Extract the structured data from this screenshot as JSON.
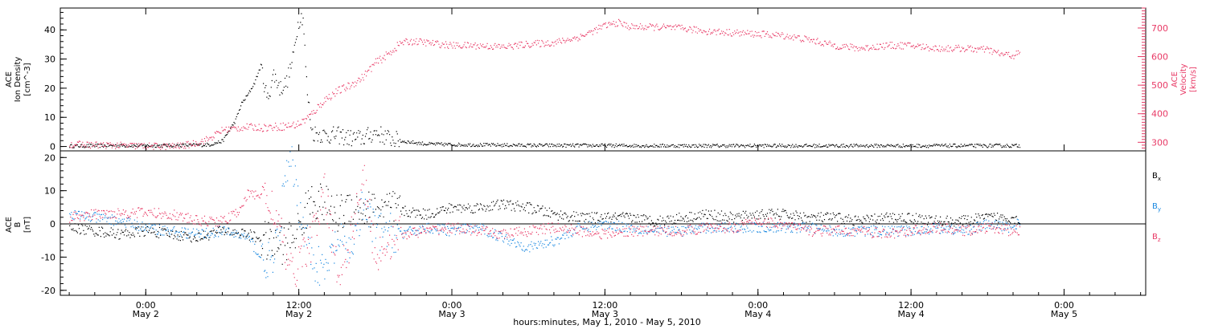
{
  "xlabel": "hours:minutes, May  1, 2010 - May  5, 2010",
  "x_ticks": [
    {
      "time": "0:00",
      "date": "May 2",
      "hour": 24
    },
    {
      "time": "12:00",
      "date": "May 2",
      "hour": 36
    },
    {
      "time": "0:00",
      "date": "May 3",
      "hour": 48
    },
    {
      "time": "12:00",
      "date": "May 3",
      "hour": 60
    },
    {
      "time": "0:00",
      "date": "May 4",
      "hour": 72
    },
    {
      "time": "12:00",
      "date": "May 4",
      "hour": 84
    },
    {
      "time": "0:00",
      "date": "May 5",
      "hour": 96
    }
  ],
  "colors": {
    "black": "#000000",
    "red": "#e83a66",
    "blue": "#1a88e0"
  },
  "chart_data": [
    {
      "type": "scatter",
      "x_unit": "hours since May 1 2010 00:00",
      "xlim": [
        17.3,
        102.4
      ],
      "ylabel_left": [
        "ACE",
        "Ion Density",
        "[cm^-3]"
      ],
      "ylabel_right": [
        "ACE",
        "Velocity",
        "[km/s]"
      ],
      "ylim_left": [
        -1.5,
        47.5
      ],
      "ylim_right": [
        270,
        770
      ],
      "yticks_left": [
        0,
        10,
        20,
        30,
        40
      ],
      "yticks_right": [
        300,
        400,
        500,
        600,
        700
      ],
      "series": [
        {
          "axis": "left",
          "color": "black",
          "points": [
            [
              18,
              0.3
            ],
            [
              20,
              0.4
            ],
            [
              22,
              0.5
            ],
            [
              24,
              0.4
            ],
            [
              26,
              0.5
            ],
            [
              28,
              0.6
            ],
            [
              29,
              0.8
            ],
            [
              30,
              2
            ],
            [
              31,
              9
            ],
            [
              31.5,
              15
            ],
            [
              32,
              18
            ],
            [
              32.5,
              22
            ],
            [
              33,
              28
            ],
            [
              33.5,
              16
            ],
            [
              34,
              25
            ],
            [
              34.5,
              20
            ],
            [
              35,
              22
            ],
            [
              35.5,
              30
            ],
            [
              35.8,
              40
            ],
            [
              36,
              44
            ],
            [
              36.3,
              45
            ],
            [
              36.6,
              20
            ],
            [
              37,
              5
            ],
            [
              38,
              4
            ],
            [
              39,
              4
            ],
            [
              40,
              3
            ],
            [
              41,
              3
            ],
            [
              42,
              5
            ],
            [
              43,
              3
            ],
            [
              44,
              2
            ],
            [
              45,
              1.5
            ],
            [
              46,
              1
            ],
            [
              48,
              0.8
            ],
            [
              52,
              0.6
            ],
            [
              56,
              0.5
            ],
            [
              60,
              0.5
            ],
            [
              64,
              0.4
            ],
            [
              68,
              0.4
            ],
            [
              72,
              0.4
            ],
            [
              76,
              0.4
            ],
            [
              80,
              0.4
            ],
            [
              84,
              0.4
            ],
            [
              88,
              0.4
            ],
            [
              92.5,
              0.4
            ]
          ]
        },
        {
          "axis": "right",
          "color": "red",
          "points": [
            [
              18,
              295
            ],
            [
              20,
              292
            ],
            [
              22,
              290
            ],
            [
              24,
              288
            ],
            [
              26,
              287
            ],
            [
              27,
              290
            ],
            [
              28,
              300
            ],
            [
              29,
              315
            ],
            [
              30,
              345
            ],
            [
              31,
              350
            ],
            [
              32,
              355
            ],
            [
              33,
              353
            ],
            [
              34,
              355
            ],
            [
              35,
              358
            ],
            [
              36,
              365
            ],
            [
              37,
              400
            ],
            [
              38,
              450
            ],
            [
              39,
              480
            ],
            [
              40,
              500
            ],
            [
              41,
              530
            ],
            [
              42,
              580
            ],
            [
              43,
              610
            ],
            [
              44,
              650
            ],
            [
              45,
              655
            ],
            [
              46,
              650
            ],
            [
              48,
              640
            ],
            [
              50,
              640
            ],
            [
              52,
              635
            ],
            [
              54,
              645
            ],
            [
              56,
              650
            ],
            [
              58,
              670
            ],
            [
              60,
              710
            ],
            [
              61,
              720
            ],
            [
              62,
              705
            ],
            [
              64,
              705
            ],
            [
              66,
              700
            ],
            [
              68,
              690
            ],
            [
              70,
              685
            ],
            [
              72,
              680
            ],
            [
              74,
              675
            ],
            [
              76,
              660
            ],
            [
              78,
              640
            ],
            [
              80,
              630
            ],
            [
              82,
              640
            ],
            [
              84,
              640
            ],
            [
              86,
              630
            ],
            [
              88,
              630
            ],
            [
              90,
              625
            ],
            [
              91,
              610
            ],
            [
              92,
              605
            ],
            [
              92.5,
              615
            ]
          ]
        }
      ]
    },
    {
      "type": "scatter",
      "x_unit": "hours since May 1 2010 00:00",
      "xlim": [
        17.3,
        102.4
      ],
      "ylabel_left": [
        "ACE",
        "B",
        "[nT]"
      ],
      "ylim": [
        -21.5,
        22
      ],
      "yticks": [
        -20,
        -10,
        0,
        10,
        20
      ],
      "zero_line": true,
      "legend": [
        "Bx",
        "By",
        "Bz"
      ],
      "legend_position": "right",
      "series": [
        {
          "name": "Bx",
          "color": "black",
          "points": [
            [
              18,
              -1
            ],
            [
              20,
              -2
            ],
            [
              22,
              -3
            ],
            [
              24,
              -2
            ],
            [
              26,
              -3
            ],
            [
              28,
              -4
            ],
            [
              30,
              -2
            ],
            [
              32,
              -3
            ],
            [
              34,
              -6
            ],
            [
              35,
              -6
            ],
            [
              36,
              -1
            ],
            [
              37,
              8
            ],
            [
              38,
              6
            ],
            [
              39,
              3
            ],
            [
              40,
              6
            ],
            [
              41,
              4
            ],
            [
              42,
              5
            ],
            [
              44,
              4
            ],
            [
              46,
              3
            ],
            [
              48,
              5
            ],
            [
              50,
              5
            ],
            [
              52,
              6
            ],
            [
              54,
              5
            ],
            [
              56,
              3
            ],
            [
              58,
              2
            ],
            [
              60,
              2
            ],
            [
              62,
              2
            ],
            [
              64,
              1
            ],
            [
              66,
              2
            ],
            [
              68,
              3
            ],
            [
              70,
              2
            ],
            [
              72,
              3
            ],
            [
              74,
              3
            ],
            [
              76,
              2
            ],
            [
              78,
              2
            ],
            [
              80,
              1
            ],
            [
              82,
              2
            ],
            [
              84,
              2
            ],
            [
              86,
              1
            ],
            [
              88,
              1
            ],
            [
              90,
              2
            ],
            [
              92,
              2
            ],
            [
              92.5,
              1
            ]
          ]
        },
        {
          "name": "By",
          "color": "blue",
          "points": [
            [
              18,
              3
            ],
            [
              20,
              2
            ],
            [
              22,
              1
            ],
            [
              24,
              -1
            ],
            [
              26,
              -2
            ],
            [
              28,
              -3
            ],
            [
              30,
              -2
            ],
            [
              32,
              -4
            ],
            [
              33,
              -10
            ],
            [
              34,
              -12
            ],
            [
              35,
              15
            ],
            [
              35.5,
              18
            ],
            [
              36,
              5
            ],
            [
              37,
              -10
            ],
            [
              38,
              -15
            ],
            [
              39,
              -5
            ],
            [
              40,
              -8
            ],
            [
              41,
              5
            ],
            [
              42,
              -2
            ],
            [
              44,
              -3
            ],
            [
              46,
              -1
            ],
            [
              48,
              -2
            ],
            [
              50,
              -1
            ],
            [
              52,
              -4
            ],
            [
              54,
              -7
            ],
            [
              56,
              -5
            ],
            [
              58,
              -1
            ],
            [
              60,
              0
            ],
            [
              62,
              -1
            ],
            [
              64,
              -2
            ],
            [
              66,
              -2
            ],
            [
              68,
              -1
            ],
            [
              70,
              -1
            ],
            [
              72,
              -1
            ],
            [
              74,
              -1
            ],
            [
              76,
              -1
            ],
            [
              78,
              -2
            ],
            [
              80,
              -2
            ],
            [
              82,
              -2
            ],
            [
              84,
              -2
            ],
            [
              86,
              -1
            ],
            [
              88,
              -2
            ],
            [
              90,
              0
            ],
            [
              92,
              -1
            ],
            [
              92.5,
              1
            ]
          ]
        },
        {
          "name": "Bz",
          "color": "red",
          "points": [
            [
              18,
              2
            ],
            [
              20,
              3
            ],
            [
              22,
              3.5
            ],
            [
              24,
              3.5
            ],
            [
              26,
              3
            ],
            [
              28,
              1
            ],
            [
              30,
              1
            ],
            [
              31,
              3
            ],
            [
              32,
              9
            ],
            [
              33,
              9
            ],
            [
              34,
              5
            ],
            [
              35,
              -10
            ],
            [
              35.5,
              -16
            ],
            [
              36,
              -10
            ],
            [
              37,
              -5
            ],
            [
              38,
              10
            ],
            [
              39,
              -15
            ],
            [
              40,
              -5
            ],
            [
              41,
              15
            ],
            [
              42,
              -10
            ],
            [
              43,
              -5
            ],
            [
              44,
              -3
            ],
            [
              46,
              -2
            ],
            [
              48,
              -1
            ],
            [
              50,
              -2
            ],
            [
              52,
              -3
            ],
            [
              54,
              -2
            ],
            [
              56,
              -1
            ],
            [
              58,
              -2
            ],
            [
              60,
              -3
            ],
            [
              62,
              -2
            ],
            [
              64,
              -2
            ],
            [
              66,
              -2
            ],
            [
              68,
              -1
            ],
            [
              70,
              -1
            ],
            [
              72,
              1
            ],
            [
              74,
              0
            ],
            [
              76,
              -2
            ],
            [
              78,
              -2
            ],
            [
              80,
              -2
            ],
            [
              82,
              -3
            ],
            [
              84,
              -2
            ],
            [
              86,
              -1
            ],
            [
              88,
              -2
            ],
            [
              90,
              -1
            ],
            [
              92,
              -2
            ],
            [
              92.5,
              -2
            ]
          ]
        }
      ]
    }
  ]
}
